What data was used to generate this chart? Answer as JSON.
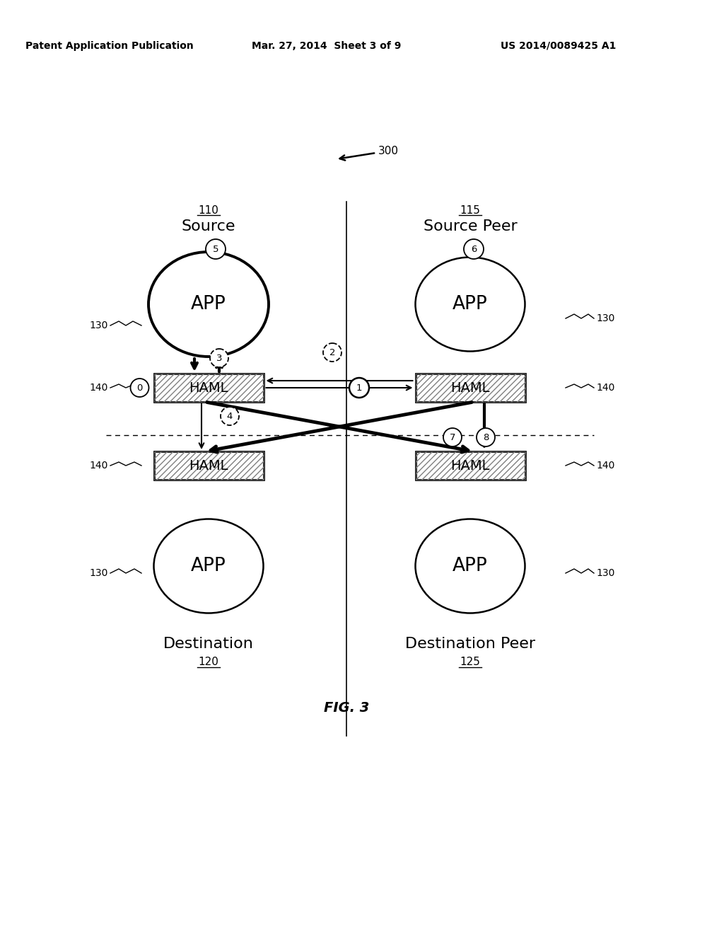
{
  "bg_color": "#ffffff",
  "header_left": "Patent Application Publication",
  "header_mid": "Mar. 27, 2014  Sheet 3 of 9",
  "header_right": "US 2014/0089425 A1",
  "fig_label": "FIG. 3",
  "diagram_ref": "300",
  "label_110": "110",
  "label_115": "115",
  "label_120": "120",
  "label_125": "125",
  "label_130": "130",
  "label_140": "140",
  "text_source": "Source",
  "text_source_peer": "Source Peer",
  "text_destination": "Destination",
  "text_destination_peer": "Destination Peer",
  "text_app": "APP",
  "text_haml": "HAML"
}
